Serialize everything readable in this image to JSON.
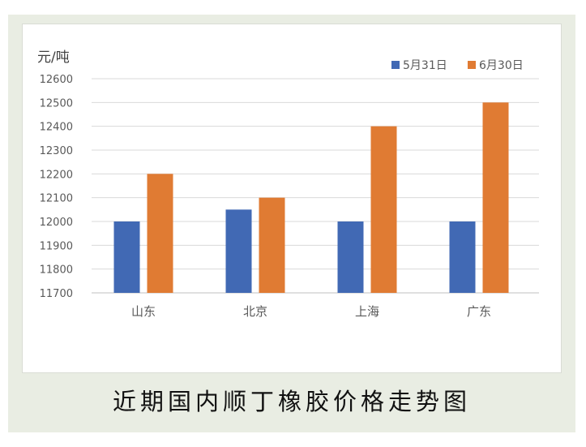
{
  "caption": "近期国内顺丁橡胶价格走势图",
  "colors": {
    "series_1": "#4169b4",
    "series_2": "#e07b33",
    "grid": "#d9d9d9",
    "axis_text": "#595959",
    "frame_bg": "#e9ede3"
  },
  "chart_data": {
    "type": "bar",
    "ylabel": "元/吨",
    "categories": [
      "山东",
      "北京",
      "上海",
      "广东"
    ],
    "series": [
      {
        "name": "5月31日",
        "values": [
          12000,
          12050,
          12000,
          12000
        ]
      },
      {
        "name": "6月30日",
        "values": [
          12200,
          12100,
          12400,
          12500
        ]
      }
    ],
    "ylim": [
      11700,
      12600
    ],
    "yticks": [
      "11700",
      "11800",
      "11900",
      "12000",
      "12100",
      "12200",
      "12300",
      "12400",
      "12500",
      "12600"
    ],
    "grid": true,
    "legend_position": "top-right"
  }
}
